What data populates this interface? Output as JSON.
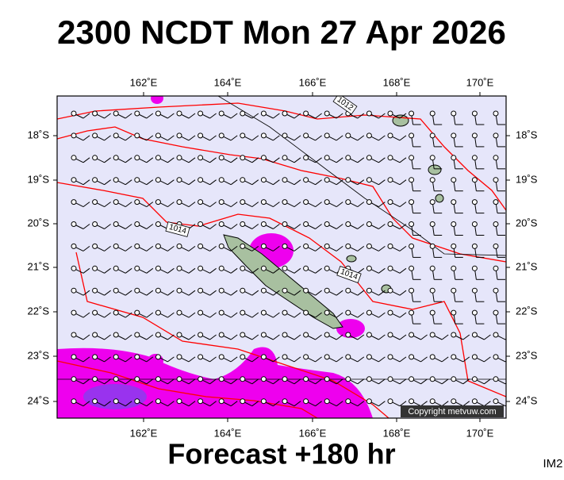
{
  "title": "2300 NCDT Mon 27 Apr 2026",
  "footer": "Forecast +180 hr",
  "image_id": "IM2",
  "copyright": "Copyright metvuw.com",
  "map": {
    "lon_labels": [
      "162˚E",
      "164˚E",
      "166˚E",
      "168˚E",
      "170˚E"
    ],
    "lat_labels": [
      "18˚S",
      "19˚S",
      "20˚S",
      "21˚S",
      "22˚S",
      "23˚S",
      "24˚S"
    ],
    "isobar_labels": [
      "1012",
      "1014",
      "1014"
    ]
  }
}
